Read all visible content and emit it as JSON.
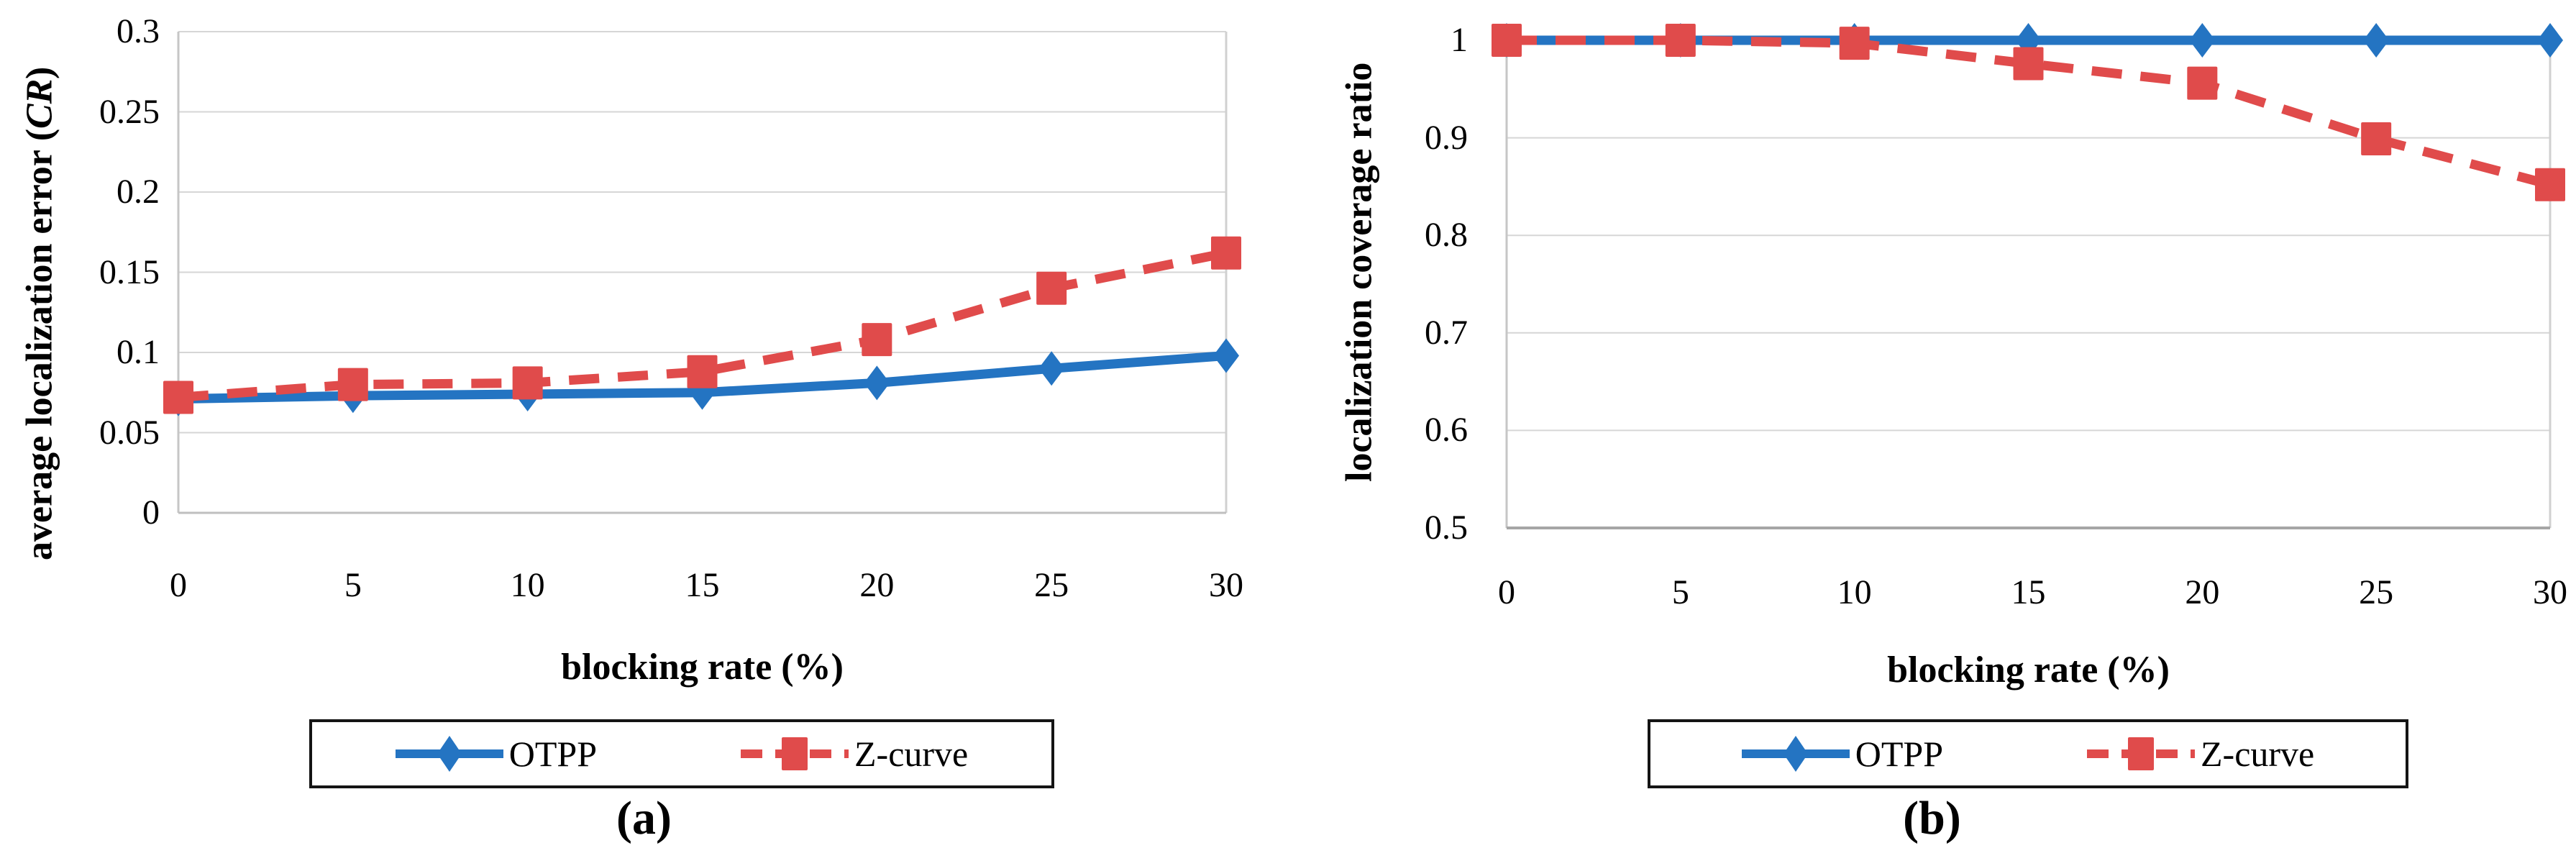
{
  "figure": {
    "background": "#ffffff",
    "grid_color": "#d6d6d6",
    "left_axis_color": "#c6c6c6",
    "right_border_color": "#d0d0d0",
    "text_color": "#000000",
    "otpp_color": "#2474c2",
    "zcurve_color": "#e04b4b"
  },
  "chart_data": [
    {
      "id": "a",
      "type": "line",
      "caption": "(a)",
      "title": "",
      "xlabel": "blocking rate (%)",
      "ylabel": "average localization error (CR)",
      "ylabel_parts": {
        "pre": "average localization error (",
        "italic": "CR",
        "post": ")"
      },
      "x": [
        0,
        5,
        10,
        15,
        20,
        25,
        30
      ],
      "xticks": [
        "0",
        "5",
        "10",
        "15",
        "20",
        "25",
        "30"
      ],
      "yticks": [
        "0.3",
        "0.25",
        "0.2",
        "0.15",
        "0.1",
        "0.05",
        "0"
      ],
      "xlim": [
        0,
        30
      ],
      "ylim": [
        0,
        0.3
      ],
      "grid": true,
      "legend_position": "bottom",
      "series": [
        {
          "name": "OTPP",
          "color": "#2474c2",
          "marker": "diamond",
          "dash": "solid",
          "values": [
            0.071,
            0.073,
            0.074,
            0.075,
            0.081,
            0.09,
            0.098
          ]
        },
        {
          "name": "Z-curve",
          "color": "#e04b4b",
          "marker": "square",
          "dash": "dashed",
          "values": [
            0.072,
            0.08,
            0.081,
            0.088,
            0.108,
            0.14,
            0.162
          ]
        }
      ]
    },
    {
      "id": "b",
      "type": "line",
      "caption": "(b)",
      "title": "",
      "xlabel": "blocking rate (%)",
      "ylabel": "localization coverage ratio",
      "ylabel_parts": {
        "pre": "localization coverage ratio",
        "italic": "",
        "post": ""
      },
      "x": [
        0,
        5,
        10,
        15,
        20,
        25,
        30
      ],
      "xticks": [
        "0",
        "5",
        "10",
        "15",
        "20",
        "25",
        "30"
      ],
      "yticks": [
        "1",
        "0.9",
        "0.8",
        "0.7",
        "0.6",
        "0.5"
      ],
      "xlim": [
        0,
        30
      ],
      "ylim": [
        0.5,
        1.0
      ],
      "grid": true,
      "legend_position": "bottom",
      "series": [
        {
          "name": "OTPP",
          "color": "#2474c2",
          "marker": "diamond",
          "dash": "solid",
          "values": [
            1.0,
            1.0,
            1.0,
            1.0,
            1.0,
            1.0,
            1.0
          ]
        },
        {
          "name": "Z-curve",
          "color": "#e04b4b",
          "marker": "square",
          "dash": "dashed",
          "values": [
            1.0,
            1.0,
            0.997,
            0.976,
            0.956,
            0.899,
            0.852
          ]
        }
      ]
    }
  ]
}
